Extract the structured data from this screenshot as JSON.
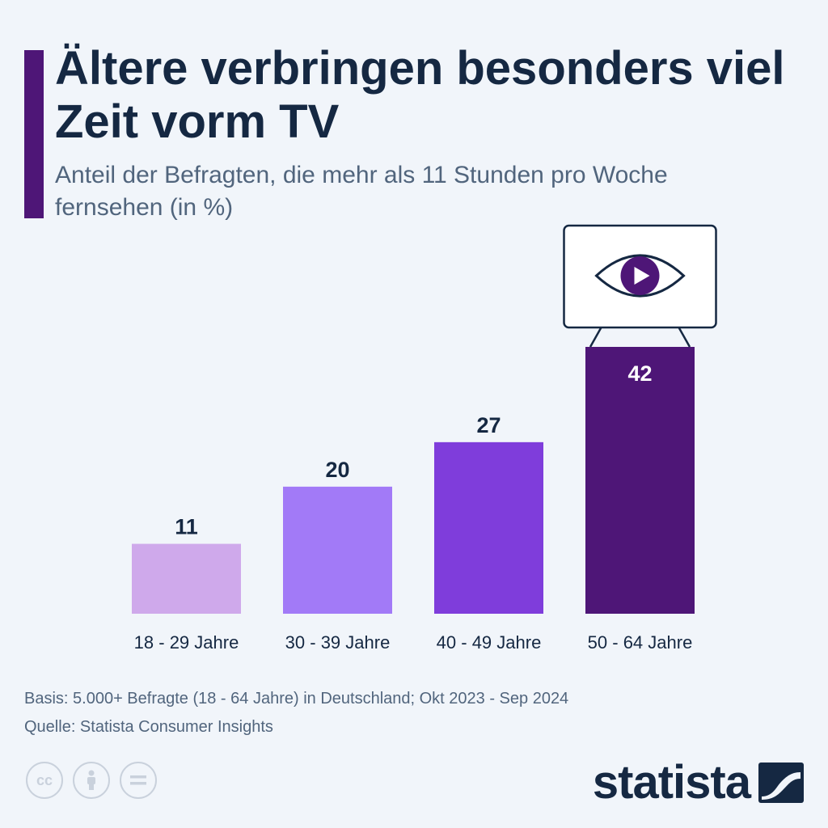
{
  "header": {
    "title": "Ältere verbringen besonders viel Zeit vorm TV",
    "subtitle": "Anteil der Befragten, die mehr als 11 Stunden pro Woche fernsehen (in %)"
  },
  "chart_data": {
    "type": "bar",
    "categories": [
      "18 - 29 Jahre",
      "30 - 39 Jahre",
      "40 - 49 Jahre",
      "50 - 64 Jahre"
    ],
    "values": [
      11,
      20,
      27,
      42
    ],
    "colors": [
      "#cfa9eb",
      "#a27af7",
      "#7f3ddb",
      "#4e1677"
    ],
    "label_colors": [
      "#152842",
      "#152842",
      "#152842",
      "#ffffff"
    ],
    "ylim": [
      0,
      42
    ],
    "grid": false,
    "legend": "none",
    "annotations": [
      {
        "type": "tv-screen-with-eye-play-icon",
        "above_category": "50 - 64 Jahre"
      }
    ]
  },
  "footer": {
    "basis": "Basis: 5.000+ Befragte (18 - 64 Jahre) in Deutschland; Okt 2023 - Sep 2024",
    "source": "Quelle: Statista Consumer Insights",
    "license_icons": [
      "cc-icon",
      "attribution-icon",
      "no-derivatives-icon"
    ],
    "logo_text": "statista"
  }
}
